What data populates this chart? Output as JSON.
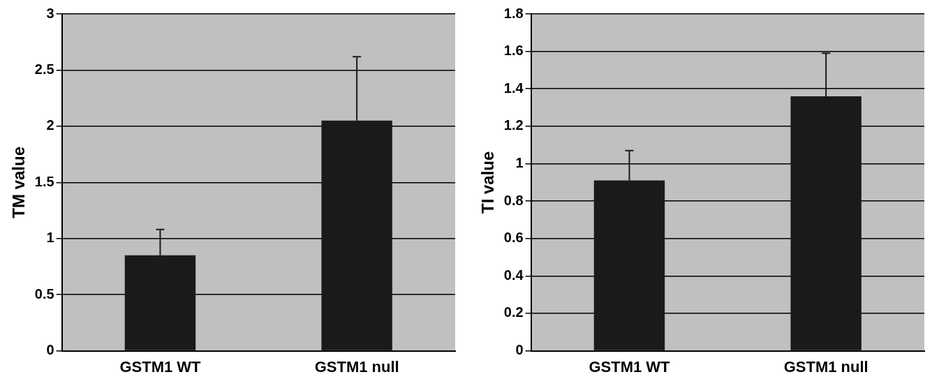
{
  "chart_data": [
    {
      "type": "bar",
      "ylabel": "TM value",
      "categories": [
        "GSTM1 WT",
        "GSTM1 null"
      ],
      "values": [
        0.85,
        2.05
      ],
      "errors": [
        [
          0.85,
          1.08
        ],
        [
          2.05,
          2.62
        ]
      ],
      "color": "#1a1a1a",
      "ylim": [
        0,
        3
      ],
      "yticks": [
        0,
        0.5,
        1,
        1.5,
        2,
        2.5,
        3
      ],
      "grid": "y",
      "legend": false
    },
    {
      "type": "bar",
      "ylabel": "TI value",
      "categories": [
        "GSTM1 WT",
        "GSTM1 null"
      ],
      "values": [
        0.91,
        1.36
      ],
      "errors": [
        [
          0.91,
          1.07
        ],
        [
          1.36,
          1.59
        ]
      ],
      "color": "#1a1a1a",
      "ylim": [
        0,
        1.8
      ],
      "yticks": [
        0,
        0.2,
        0.4,
        0.6,
        0.8,
        1,
        1.2,
        1.4,
        1.6,
        1.8
      ],
      "grid": "y",
      "legend": false
    }
  ]
}
